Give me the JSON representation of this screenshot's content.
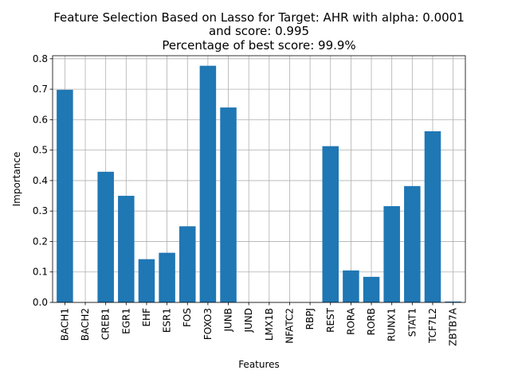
{
  "chart_data": {
    "type": "bar",
    "title_lines": [
      "Feature Selection Based on Lasso for Target: AHR with alpha: 0.0001",
      "and score: 0.995",
      "Percentage of best score: 99.9%"
    ],
    "xlabel": "Features",
    "ylabel": "Importance",
    "ylim": [
      0,
      0.81
    ],
    "yticks": [
      "0.0",
      "0.1",
      "0.2",
      "0.3",
      "0.4",
      "0.5",
      "0.6",
      "0.7",
      "0.8"
    ],
    "grid": true,
    "bar_color": "#1f77b4",
    "categories": [
      "BACH1",
      "BACH2",
      "CREB1",
      "EGR1",
      "EHF",
      "ESR1",
      "FOS",
      "FOXO3",
      "JUNB",
      "JUND",
      "LMX1B",
      "NFATC2",
      "RBPJ",
      "REST",
      "RORA",
      "RORB",
      "RUNX1",
      "STAT1",
      "TCF7L2",
      "ZBTB7A"
    ],
    "values": [
      0.698,
      0.0,
      0.429,
      0.35,
      0.142,
      0.163,
      0.25,
      0.777,
      0.64,
      0.0,
      0.0,
      0.0,
      0.0,
      0.513,
      0.105,
      0.084,
      0.316,
      0.382,
      0.562,
      0.003
    ]
  }
}
